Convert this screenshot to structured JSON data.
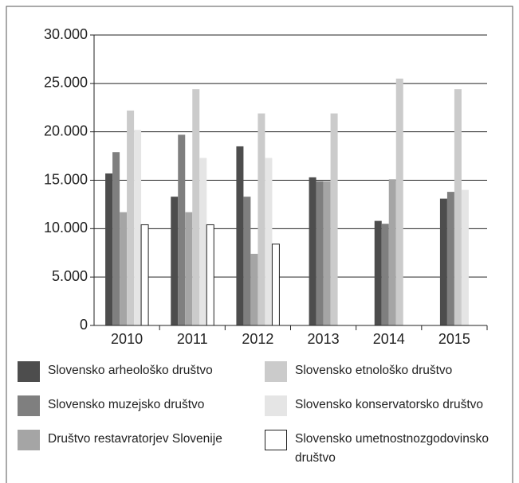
{
  "chart_data": {
    "type": "bar",
    "categories": [
      "2010",
      "2011",
      "2012",
      "2013",
      "2014",
      "2015"
    ],
    "series": [
      {
        "name": "Slovensko arheološko društvo",
        "color": "#4d4d4d",
        "values": [
          15700,
          13300,
          18500,
          15300,
          10800,
          13100
        ]
      },
      {
        "name": "Slovensko muzejsko društvo",
        "color": "#7f7f7f",
        "values": [
          17900,
          19700,
          13300,
          14900,
          10500,
          13800
        ]
      },
      {
        "name": "Društvo restavratorjev Slovenije",
        "color": "#a5a5a5",
        "values": [
          11700,
          11700,
          7400,
          14900,
          15100,
          null
        ]
      },
      {
        "name": "Slovensko etnološko društvo",
        "color": "#cbcbcb",
        "values": [
          22200,
          24400,
          21900,
          21900,
          25500,
          24400
        ]
      },
      {
        "name": "Slovensko konservatorsko društvo",
        "color": "#e5e5e5",
        "values": [
          20200,
          17300,
          17300,
          null,
          null,
          14000
        ]
      },
      {
        "name": "Slovensko umetnostnozgodovinsko društvo",
        "color": "#ffffff",
        "values": [
          10400,
          10400,
          8400,
          null,
          null,
          null
        ]
      }
    ],
    "ylim": [
      0,
      30000
    ],
    "yticks": [
      0,
      {
        "value": 5000,
        "label": "5.000"
      },
      {
        "value": 10000,
        "label": "10.000"
      },
      {
        "value": 15000,
        "label": "15.000"
      },
      {
        "value": 20000,
        "label": "20.000"
      },
      {
        "value": 25000,
        "label": "25.000"
      },
      {
        "value": 30000,
        "label": "30.000"
      }
    ],
    "grid": true
  }
}
